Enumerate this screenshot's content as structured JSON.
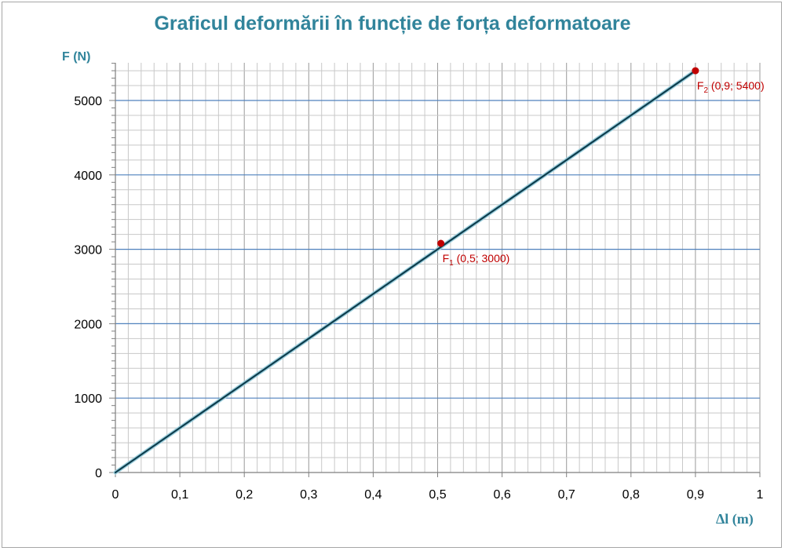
{
  "chart_data": {
    "type": "line",
    "title": "Graficul deformării în funcție de forța deformatoare",
    "ylabel": "F (N)",
    "xlabel": "Δl (m)",
    "xlim": [
      0,
      1
    ],
    "ylim": [
      0,
      5400
    ],
    "x_ticks": [
      "0",
      "0,1",
      "0,2",
      "0,3",
      "0,4",
      "0,5",
      "0,6",
      "0,7",
      "0,8",
      "0,9",
      "1"
    ],
    "y_ticks": [
      "0",
      "1000",
      "2000",
      "3000",
      "4000",
      "5000"
    ],
    "grid": true,
    "series": [
      {
        "x": [
          0,
          0.9
        ],
        "y": [
          0,
          5400
        ],
        "color": "#0d3d4d"
      }
    ],
    "points": [
      {
        "x": 0.505,
        "y": 3080,
        "label_main": "F",
        "label_sub": "1",
        "label_rest": " (0,5; 3000)",
        "color": "#c00000"
      },
      {
        "x": 0.9,
        "y": 5400,
        "label_main": "F",
        "label_sub": "2",
        "label_rest": " (0,9; 5400)",
        "color": "#c00000"
      }
    ]
  }
}
